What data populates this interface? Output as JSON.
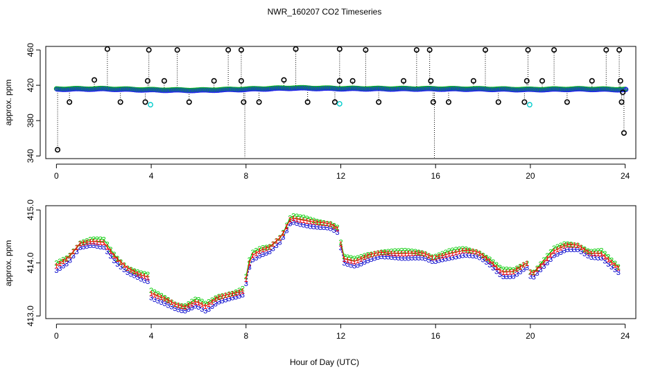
{
  "title": "NWR_160207  CO2 Timeseries",
  "xlabel": "Hour of Day (UTC)",
  "colors": {
    "flag": "#000000",
    "c1": "#ff0000",
    "c2": "#00cc00",
    "c3": "#0000cc",
    "marker": "#00cccc",
    "blue": "#2222ee"
  },
  "chart_data": [
    {
      "type": "scatter",
      "name": "top-panel",
      "ylabel": "approx. ppm",
      "xlim": [
        -0.45,
        24.45
      ],
      "ylim": [
        337,
        464
      ],
      "x_ticks": [
        0,
        4,
        8,
        12,
        16,
        20,
        24
      ],
      "y_ticks": [
        340,
        380,
        420,
        460
      ],
      "baseline": [
        {
          "x": 0,
          "y": 416.0
        },
        {
          "x": 2,
          "y": 416.2
        },
        {
          "x": 4,
          "y": 415.0
        },
        {
          "x": 6,
          "y": 414.6
        },
        {
          "x": 8,
          "y": 415.8
        },
        {
          "x": 10,
          "y": 417.2
        },
        {
          "x": 12,
          "y": 416.5
        },
        {
          "x": 14,
          "y": 416.3
        },
        {
          "x": 16,
          "y": 416.2
        },
        {
          "x": 18,
          "y": 416.0
        },
        {
          "x": 20,
          "y": 415.4
        },
        {
          "x": 22,
          "y": 416.0
        },
        {
          "x": 24,
          "y": 415.4
        }
      ],
      "spikes": [
        {
          "x": 0.05,
          "y": 347
        },
        {
          "x": 0.55,
          "y": 401
        },
        {
          "x": 1.6,
          "y": 426
        },
        {
          "x": 2.15,
          "y": 461
        },
        {
          "x": 2.7,
          "y": 401
        },
        {
          "x": 3.75,
          "y": 401
        },
        {
          "x": 3.85,
          "y": 425
        },
        {
          "x": 3.9,
          "y": 460
        },
        {
          "x": 4.55,
          "y": 425
        },
        {
          "x": 5.1,
          "y": 460
        },
        {
          "x": 5.6,
          "y": 401
        },
        {
          "x": 6.65,
          "y": 425
        },
        {
          "x": 7.25,
          "y": 460
        },
        {
          "x": 7.8,
          "y": 460
        },
        {
          "x": 7.8,
          "y": 425
        },
        {
          "x": 7.9,
          "y": 401
        },
        {
          "x": 7.95,
          "y": 338
        },
        {
          "x": 8.55,
          "y": 401
        },
        {
          "x": 9.6,
          "y": 426
        },
        {
          "x": 10.1,
          "y": 461
        },
        {
          "x": 10.6,
          "y": 401
        },
        {
          "x": 11.75,
          "y": 401
        },
        {
          "x": 11.95,
          "y": 461
        },
        {
          "x": 11.95,
          "y": 425
        },
        {
          "x": 12.5,
          "y": 425
        },
        {
          "x": 13.05,
          "y": 460
        },
        {
          "x": 13.6,
          "y": 401
        },
        {
          "x": 14.65,
          "y": 425
        },
        {
          "x": 15.2,
          "y": 460
        },
        {
          "x": 15.75,
          "y": 460
        },
        {
          "x": 15.8,
          "y": 425
        },
        {
          "x": 15.9,
          "y": 401
        },
        {
          "x": 15.95,
          "y": 338
        },
        {
          "x": 16.55,
          "y": 401
        },
        {
          "x": 17.6,
          "y": 425
        },
        {
          "x": 18.1,
          "y": 460
        },
        {
          "x": 18.65,
          "y": 401
        },
        {
          "x": 19.75,
          "y": 401
        },
        {
          "x": 19.85,
          "y": 425
        },
        {
          "x": 19.9,
          "y": 460
        },
        {
          "x": 20.5,
          "y": 425
        },
        {
          "x": 21.0,
          "y": 460
        },
        {
          "x": 21.55,
          "y": 401
        },
        {
          "x": 22.6,
          "y": 425
        },
        {
          "x": 23.2,
          "y": 460
        },
        {
          "x": 23.75,
          "y": 460
        },
        {
          "x": 23.8,
          "y": 425
        },
        {
          "x": 23.85,
          "y": 401
        },
        {
          "x": 23.9,
          "y": 412
        },
        {
          "x": 23.95,
          "y": 366
        }
      ],
      "cyan_points": [
        {
          "x": 3.97,
          "y": 398
        },
        {
          "x": 11.95,
          "y": 399
        },
        {
          "x": 19.97,
          "y": 398
        }
      ]
    },
    {
      "type": "line",
      "name": "bottom-panel",
      "ylabel": "approx. ppm",
      "xlim": [
        -0.45,
        24.45
      ],
      "ylim": [
        412.95,
        415.08
      ],
      "x_ticks": [
        0,
        4,
        8,
        12,
        16,
        20,
        24
      ],
      "y_ticks": [
        413.0,
        414.0,
        415.0
      ],
      "y_tick_labels": [
        "413.0",
        "414.0",
        "415.0"
      ],
      "gaps": [
        3.9,
        7.95,
        11.95,
        15.95,
        19.9
      ],
      "keypoints": [
        {
          "x": 0.0,
          "y": 413.92
        },
        {
          "x": 0.5,
          "y": 414.05
        },
        {
          "x": 1.0,
          "y": 414.32
        },
        {
          "x": 1.5,
          "y": 414.38
        },
        {
          "x": 2.0,
          "y": 414.36
        },
        {
          "x": 2.5,
          "y": 414.05
        },
        {
          "x": 3.0,
          "y": 413.85
        },
        {
          "x": 3.5,
          "y": 413.75
        },
        {
          "x": 3.9,
          "y": 413.7
        },
        {
          "x": 4.0,
          "y": 413.4
        },
        {
          "x": 4.5,
          "y": 413.3
        },
        {
          "x": 5.0,
          "y": 413.17
        },
        {
          "x": 5.4,
          "y": 413.12
        },
        {
          "x": 5.9,
          "y": 413.25
        },
        {
          "x": 6.3,
          "y": 413.15
        },
        {
          "x": 6.8,
          "y": 413.3
        },
        {
          "x": 7.5,
          "y": 413.38
        },
        {
          "x": 7.9,
          "y": 413.45
        },
        {
          "x": 8.2,
          "y": 414.1
        },
        {
          "x": 8.6,
          "y": 414.2
        },
        {
          "x": 9.0,
          "y": 414.25
        },
        {
          "x": 9.5,
          "y": 414.45
        },
        {
          "x": 9.9,
          "y": 414.82
        },
        {
          "x": 10.4,
          "y": 414.78
        },
        {
          "x": 11.0,
          "y": 414.72
        },
        {
          "x": 11.6,
          "y": 414.68
        },
        {
          "x": 11.9,
          "y": 414.6
        },
        {
          "x": 12.1,
          "y": 414.05
        },
        {
          "x": 12.6,
          "y": 414.0
        },
        {
          "x": 13.2,
          "y": 414.1
        },
        {
          "x": 13.7,
          "y": 414.15
        },
        {
          "x": 14.4,
          "y": 414.15
        },
        {
          "x": 15.0,
          "y": 414.15
        },
        {
          "x": 15.5,
          "y": 414.13
        },
        {
          "x": 15.9,
          "y": 414.05
        },
        {
          "x": 16.1,
          "y": 414.08
        },
        {
          "x": 16.6,
          "y": 414.15
        },
        {
          "x": 17.2,
          "y": 414.2
        },
        {
          "x": 17.8,
          "y": 414.15
        },
        {
          "x": 18.3,
          "y": 414.0
        },
        {
          "x": 18.8,
          "y": 413.8
        },
        {
          "x": 19.3,
          "y": 413.8
        },
        {
          "x": 19.85,
          "y": 413.95
        },
        {
          "x": 20.05,
          "y": 413.72
        },
        {
          "x": 20.5,
          "y": 413.95
        },
        {
          "x": 21.0,
          "y": 414.2
        },
        {
          "x": 21.5,
          "y": 414.3
        },
        {
          "x": 22.0,
          "y": 414.28
        },
        {
          "x": 22.5,
          "y": 414.15
        },
        {
          "x": 23.0,
          "y": 414.15
        },
        {
          "x": 23.5,
          "y": 413.95
        },
        {
          "x": 23.75,
          "y": 413.85
        }
      ],
      "series": [
        {
          "name": "1",
          "color": "#ff0000",
          "offset": 0.04
        },
        {
          "name": "2",
          "color": "#00cc00",
          "offset": 0.07
        },
        {
          "name": "3",
          "color": "#0000cc",
          "offset": -0.04
        }
      ]
    }
  ]
}
